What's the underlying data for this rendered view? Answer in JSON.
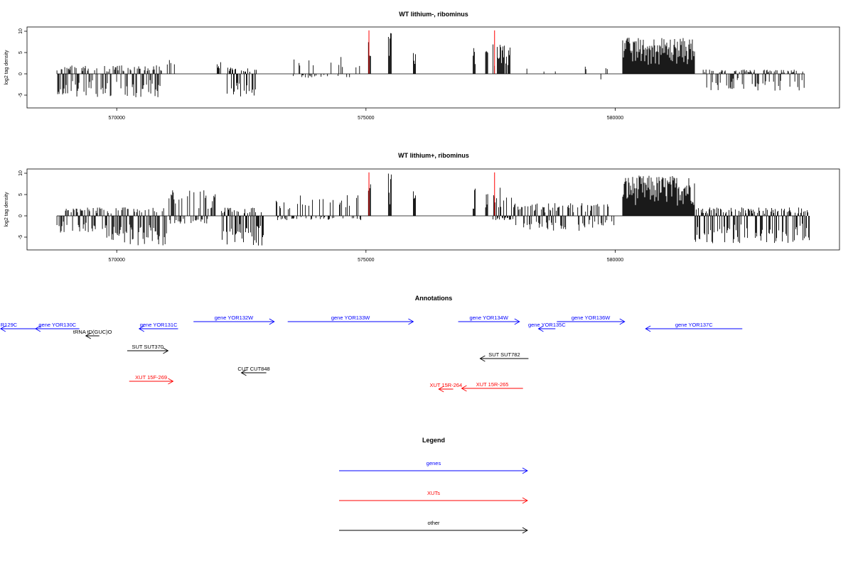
{
  "chart_data": [
    {
      "type": "bar",
      "title": "WT lithium-, ribominus",
      "ylabel": "log2 tag density",
      "xlim": [
        568200,
        584500
      ],
      "ylim": [
        -8,
        11
      ],
      "x_ticks": [
        570000,
        575000,
        580000
      ],
      "y_ticks": [
        -5,
        0,
        5,
        10
      ],
      "segments": [
        {
          "x0": 568800,
          "x1": 570900,
          "ymax": 2,
          "ymin": -5.5,
          "dens": 0.75
        },
        {
          "x0": 571000,
          "x1": 571400,
          "ymax": 3.5,
          "ymin": 0,
          "dens": 0.15
        },
        {
          "x0": 572000,
          "x1": 572100,
          "ymax": 3,
          "ymin": 0,
          "dens": 0.3
        },
        {
          "x0": 572200,
          "x1": 572800,
          "ymax": 1.5,
          "ymin": -5.5,
          "dens": 0.7
        },
        {
          "x0": 573500,
          "x1": 574800,
          "ymax": 4,
          "ymin": -1,
          "dens": 0.2
        },
        {
          "x0": 574800,
          "x1": 574900,
          "ymax": 2.5,
          "ymin": 0,
          "dens": 0.5
        },
        {
          "x0": 575050,
          "x1": 575100,
          "ymax": 9,
          "ymin": 0,
          "dens": 1
        },
        {
          "x0": 575450,
          "x1": 575520,
          "ymax": 10,
          "ymin": 0,
          "dens": 1
        },
        {
          "x0": 575950,
          "x1": 576000,
          "ymax": 6,
          "ymin": 0,
          "dens": 1
        },
        {
          "x0": 577150,
          "x1": 577200,
          "ymax": 6.5,
          "ymin": 0,
          "dens": 1
        },
        {
          "x0": 577400,
          "x1": 577450,
          "ymax": 6.5,
          "ymin": 0,
          "dens": 1
        },
        {
          "x0": 577550,
          "x1": 577900,
          "ymax": 7,
          "ymin": 0,
          "dens": 0.8
        },
        {
          "x0": 578000,
          "x1": 578800,
          "ymax": 1.5,
          "ymin": -3,
          "dens": 0.1
        },
        {
          "x0": 579100,
          "x1": 579900,
          "ymax": 2,
          "ymin": -2,
          "dens": 0.1
        },
        {
          "x0": 580150,
          "x1": 581600,
          "ymax": 8.5,
          "ymin": 0,
          "dens": 1
        },
        {
          "x0": 581750,
          "x1": 583800,
          "ymax": 1,
          "ymin": -4,
          "dens": 0.6
        }
      ],
      "highlights": [
        {
          "x": 575060,
          "y": 10.2,
          "color": "#ff0000"
        },
        {
          "x": 577580,
          "y": 10.2,
          "color": "#ff0000"
        }
      ]
    },
    {
      "type": "bar",
      "title": "WT lithium+, ribominus",
      "ylabel": "log2 tag density",
      "xlim": [
        568200,
        584500
      ],
      "ylim": [
        -8,
        11
      ],
      "x_ticks": [
        570000,
        575000,
        580000
      ],
      "y_ticks": [
        -5,
        0,
        5,
        10
      ],
      "segments": [
        {
          "x0": 568800,
          "x1": 569800,
          "ymax": 2,
          "ymin": -4,
          "dens": 0.7
        },
        {
          "x0": 569800,
          "x1": 571000,
          "ymax": 2,
          "ymin": -7,
          "dens": 0.85
        },
        {
          "x0": 571050,
          "x1": 572000,
          "ymax": 6,
          "ymin": -2,
          "dens": 0.7
        },
        {
          "x0": 572100,
          "x1": 572950,
          "ymax": 2,
          "ymin": -7,
          "dens": 0.85
        },
        {
          "x0": 573200,
          "x1": 574900,
          "ymax": 5,
          "ymin": -1,
          "dens": 0.5
        },
        {
          "x0": 575050,
          "x1": 575100,
          "ymax": 8.5,
          "ymin": 0,
          "dens": 1
        },
        {
          "x0": 575450,
          "x1": 575520,
          "ymax": 10,
          "ymin": 0,
          "dens": 1
        },
        {
          "x0": 575950,
          "x1": 576000,
          "ymax": 6,
          "ymin": 0,
          "dens": 1
        },
        {
          "x0": 577150,
          "x1": 577200,
          "ymax": 6.5,
          "ymin": 0,
          "dens": 1
        },
        {
          "x0": 577400,
          "x1": 577450,
          "ymax": 6.5,
          "ymin": 0,
          "dens": 1
        },
        {
          "x0": 577550,
          "x1": 577950,
          "ymax": 7,
          "ymin": -1,
          "dens": 0.9
        },
        {
          "x0": 577950,
          "x1": 580000,
          "ymax": 3,
          "ymin": -3.5,
          "dens": 0.6
        },
        {
          "x0": 580150,
          "x1": 581600,
          "ymax": 9.5,
          "ymin": 0,
          "dens": 1
        },
        {
          "x0": 581600,
          "x1": 583900,
          "ymax": 2,
          "ymin": -6.5,
          "dens": 0.85
        }
      ],
      "highlights": [
        {
          "x": 575060,
          "y": 10.2,
          "color": "#ff0000"
        },
        {
          "x": 577580,
          "y": 10.2,
          "color": "#ff0000"
        }
      ]
    }
  ],
  "annotations": {
    "title": "Annotations",
    "features": [
      {
        "label": "R129C",
        "strand": "-",
        "color": "#0000ff",
        "x0": 567670,
        "x1": 568950,
        "label_side": "start"
      },
      {
        "label": "gene YOR130C",
        "strand": "-",
        "color": "#0000ff",
        "x0": 568370,
        "x1": 569250,
        "label_side": "center"
      },
      {
        "label": "tRNA tD(GUC)O",
        "strand": "-",
        "color": "#000000",
        "x0": 569380,
        "x1": 569650,
        "label_side": "center"
      },
      {
        "label": "gene YOR131C",
        "strand": "-",
        "color": "#0000ff",
        "x0": 570450,
        "x1": 571230,
        "label_side": "center"
      },
      {
        "label": "SUT SUT370",
        "strand": "+",
        "color": "#000000",
        "x0": 570210,
        "x1": 571030,
        "label_side": "center"
      },
      {
        "label": "XUT 15F-269",
        "strand": "+",
        "color": "#ff0000",
        "x0": 570250,
        "x1": 571130,
        "label_side": "center"
      },
      {
        "label": "gene YOR132W",
        "strand": "+",
        "color": "#0000ff",
        "x0": 571540,
        "x1": 573160,
        "label_side": "center"
      },
      {
        "label": "CUT CUT848",
        "strand": "-",
        "color": "#000000",
        "x0": 572500,
        "x1": 573000,
        "label_side": "center"
      },
      {
        "label": "gene YOR133W",
        "strand": "+",
        "color": "#0000ff",
        "x0": 573430,
        "x1": 575950,
        "label_side": "center"
      },
      {
        "label": "gene YOR134W",
        "strand": "+",
        "color": "#0000ff",
        "x0": 576850,
        "x1": 578080,
        "label_side": "center"
      },
      {
        "label": "gene YOR135C",
        "strand": "-",
        "color": "#0000ff",
        "x0": 578460,
        "x1": 578800,
        "label_side": "center"
      },
      {
        "label": "gene YOR136W",
        "strand": "+",
        "color": "#0000ff",
        "x0": 578830,
        "x1": 580190,
        "label_side": "center"
      },
      {
        "label": "gene YOR137C",
        "strand": "-",
        "color": "#0000ff",
        "x0": 580610,
        "x1": 582550,
        "label_side": "center"
      },
      {
        "label": "SUT SUT782",
        "strand": "-",
        "color": "#000000",
        "x0": 577290,
        "x1": 578260,
        "label_side": "center"
      },
      {
        "label": "XUT 15R-264",
        "strand": "-",
        "color": "#ff0000",
        "x0": 576460,
        "x1": 576750,
        "label_side": "center"
      },
      {
        "label": "XUT 15R-265",
        "strand": "-",
        "color": "#ff0000",
        "x0": 576920,
        "x1": 578150,
        "label_side": "center"
      }
    ]
  },
  "legend": {
    "title": "Legend",
    "items": [
      {
        "label": "genes",
        "color": "#0000ff"
      },
      {
        "label": "XUTs",
        "color": "#ff0000"
      },
      {
        "label": "other",
        "color": "#000000"
      }
    ]
  }
}
